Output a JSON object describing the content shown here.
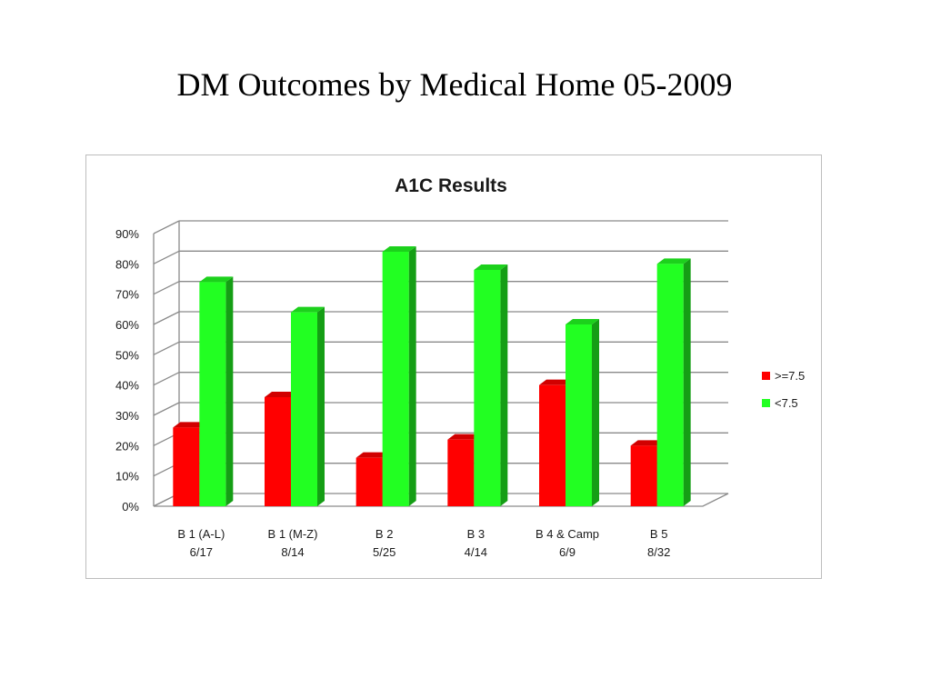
{
  "slide": {
    "title": "DM Outcomes by Medical Home 05-2009"
  },
  "chart_data": {
    "type": "bar",
    "title": "A1C Results",
    "categories": [
      [
        "B 1 (A-L)",
        "6/17"
      ],
      [
        "B 1 (M-Z)",
        "8/14"
      ],
      [
        "B 2",
        "5/25"
      ],
      [
        "B 3",
        "4/14"
      ],
      [
        "B 4 & Camp",
        "6/9"
      ],
      [
        "B 5",
        "8/32"
      ]
    ],
    "series": [
      {
        "name": ">=7.5",
        "values": [
          26,
          36,
          16,
          22,
          40,
          20
        ],
        "color": "#ff0000"
      },
      {
        "name": "<7.5",
        "values": [
          74,
          64,
          84,
          78,
          60,
          80
        ],
        "color": "#22ff22"
      }
    ],
    "y_ticks": [
      "0%",
      "10%",
      "20%",
      "30%",
      "40%",
      "50%",
      "60%",
      "70%",
      "80%",
      "90%"
    ],
    "ylim": [
      0,
      90
    ],
    "grid": true,
    "legend_position": "right",
    "three_d": true
  }
}
